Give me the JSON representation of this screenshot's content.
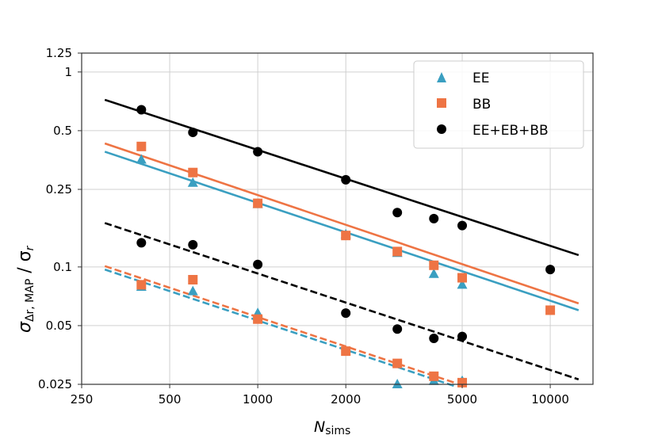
{
  "chart_data": {
    "type": "scatter",
    "xscale": "log",
    "yscale": "log",
    "xlim": [
      250,
      14000
    ],
    "ylim": [
      0.025,
      1.25
    ],
    "grid": true,
    "x_ticks": [
      250,
      500,
      1000,
      2000,
      5000,
      10000
    ],
    "x_tick_labels": [
      "250",
      "500",
      "1000",
      "2000",
      "5000",
      "10000"
    ],
    "y_ticks": [
      0.025,
      0.05,
      0.1,
      0.25,
      0.5,
      1,
      1.25
    ],
    "y_tick_labels": [
      "0.025",
      "0.05",
      "0.1",
      "0.25",
      "0.5",
      "1",
      "1.25"
    ],
    "xlabel": {
      "main": "N",
      "sub": "sims"
    },
    "ylabel": {
      "main": "σ",
      "sub": "Δr, MAP",
      "rest": " / σ",
      "sub2": "r"
    },
    "legend_position": "top-right",
    "series": [
      {
        "name": "EE",
        "color": "#3a9fc1",
        "marker": "triangle",
        "points": [
          {
            "x": 400,
            "y": 0.355
          },
          {
            "x": 600,
            "y": 0.27
          },
          {
            "x": 1000,
            "y": 0.21
          },
          {
            "x": 2000,
            "y": 0.147
          },
          {
            "x": 3000,
            "y": 0.118
          },
          {
            "x": 4000,
            "y": 0.092
          },
          {
            "x": 5000,
            "y": 0.081
          },
          {
            "x": 400,
            "y": 0.079
          },
          {
            "x": 600,
            "y": 0.075
          },
          {
            "x": 1000,
            "y": 0.058
          },
          {
            "x": 3000,
            "y": 0.025
          },
          {
            "x": 4000,
            "y": 0.026
          },
          {
            "x": 5000,
            "y": 0.026
          }
        ],
        "fits": [
          {
            "style": "solid",
            "x": [
              300,
              12500
            ],
            "y": [
              0.39,
              0.06
            ]
          },
          {
            "style": "dashed",
            "x": [
              300,
              4700
            ],
            "y": [
              0.097,
              0.0245
            ]
          }
        ]
      },
      {
        "name": "BB",
        "color": "#ee7444",
        "marker": "square",
        "points": [
          {
            "x": 400,
            "y": 0.415
          },
          {
            "x": 600,
            "y": 0.305
          },
          {
            "x": 1000,
            "y": 0.212
          },
          {
            "x": 2000,
            "y": 0.145
          },
          {
            "x": 3000,
            "y": 0.12
          },
          {
            "x": 4000,
            "y": 0.102
          },
          {
            "x": 5000,
            "y": 0.088
          },
          {
            "x": 10000,
            "y": 0.06
          },
          {
            "x": 400,
            "y": 0.081
          },
          {
            "x": 600,
            "y": 0.086
          },
          {
            "x": 1000,
            "y": 0.054
          },
          {
            "x": 2000,
            "y": 0.037
          },
          {
            "x": 3000,
            "y": 0.032
          },
          {
            "x": 4000,
            "y": 0.0275
          },
          {
            "x": 5000,
            "y": 0.0255
          }
        ],
        "fits": [
          {
            "style": "solid",
            "x": [
              300,
              12500
            ],
            "y": [
              0.43,
              0.065
            ]
          },
          {
            "style": "dashed",
            "x": [
              300,
              4700
            ],
            "y": [
              0.101,
              0.0255
            ]
          }
        ]
      },
      {
        "name": "EE+EB+BB",
        "color": "#000000",
        "marker": "circle",
        "points": [
          {
            "x": 400,
            "y": 0.64
          },
          {
            "x": 600,
            "y": 0.49
          },
          {
            "x": 1000,
            "y": 0.39
          },
          {
            "x": 2000,
            "y": 0.28
          },
          {
            "x": 3000,
            "y": 0.19
          },
          {
            "x": 4000,
            "y": 0.177
          },
          {
            "x": 5000,
            "y": 0.163
          },
          {
            "x": 10000,
            "y": 0.097
          },
          {
            "x": 400,
            "y": 0.133
          },
          {
            "x": 600,
            "y": 0.13
          },
          {
            "x": 1000,
            "y": 0.103
          },
          {
            "x": 2000,
            "y": 0.058
          },
          {
            "x": 3000,
            "y": 0.048
          },
          {
            "x": 4000,
            "y": 0.043
          },
          {
            "x": 5000,
            "y": 0.044
          }
        ],
        "fits": [
          {
            "style": "solid",
            "x": [
              300,
              12500
            ],
            "y": [
              0.72,
              0.115
            ]
          },
          {
            "style": "dashed",
            "x": [
              300,
              12500
            ],
            "y": [
              0.168,
              0.0265
            ]
          }
        ]
      }
    ]
  }
}
